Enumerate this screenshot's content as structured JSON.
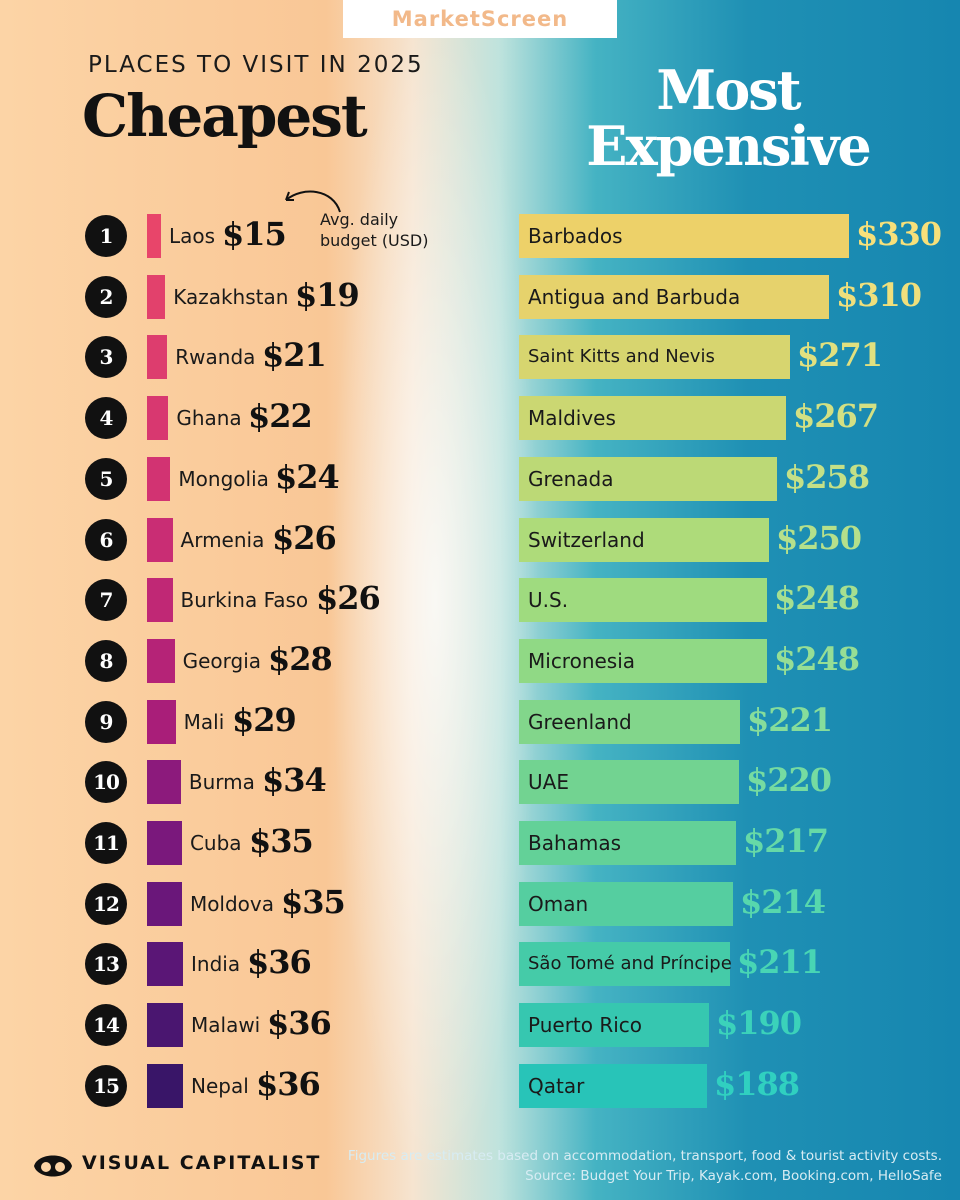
{
  "brand": "MarketScreen",
  "subtitle": "PLACES TO VISIT IN 2025",
  "footer": {
    "logo_text": "VISUAL CAPITALIST",
    "note": "Figures are estimates based on accommodation, transport, food & tourist activity costs.",
    "source": "Source: Budget Your Trip, Kayak.com, Booking.com, HelloSafe"
  },
  "chart_data": [
    {
      "type": "bar",
      "title": "Cheapest",
      "annotation": "Avg. daily budget (USD)",
      "categories": [
        "Laos",
        "Kazakhstan",
        "Rwanda",
        "Ghana",
        "Mongolia",
        "Armenia",
        "Burkina Faso",
        "Georgia",
        "Mali",
        "Burma",
        "Cuba",
        "Moldova",
        "India",
        "Malawi",
        "Nepal"
      ],
      "ranks": [
        "1",
        "2",
        "3",
        "4",
        "5",
        "6",
        "7",
        "8",
        "9",
        "10",
        "11",
        "12",
        "13",
        "14",
        "15"
      ],
      "values": [
        15,
        19,
        21,
        22,
        24,
        26,
        26,
        28,
        29,
        34,
        35,
        35,
        36,
        36,
        36
      ],
      "value_labels": [
        "$15",
        "$19",
        "$21",
        "$22",
        "$24",
        "$26",
        "$26",
        "$28",
        "$29",
        "$34",
        "$35",
        "$35",
        "$36",
        "$36",
        "$36"
      ],
      "colors": [
        "#e8456a",
        "#e2416c",
        "#dd3d6e",
        "#d83870",
        "#d23372",
        "#c92d74",
        "#c02875",
        "#b52377",
        "#a91e79",
        "#8c1a7c",
        "#7a187c",
        "#6a177a",
        "#5a1676",
        "#4a1670",
        "#391568"
      ]
    },
    {
      "type": "bar",
      "title": "Most Expensive",
      "categories": [
        "Barbados",
        "Antigua and Barbuda",
        "Saint Kitts and Nevis",
        "Maldives",
        "Grenada",
        "Switzerland",
        "U.S.",
        "Micronesia",
        "Greenland",
        "UAE",
        "Bahamas",
        "Oman",
        "São Tomé and Príncipe",
        "Puerto Rico",
        "Qatar"
      ],
      "values": [
        330,
        310,
        271,
        267,
        258,
        250,
        248,
        248,
        221,
        220,
        217,
        214,
        211,
        190,
        188
      ],
      "value_labels": [
        "$330",
        "$310",
        "$271",
        "$267",
        "$258",
        "$250",
        "$248",
        "$248",
        "$221",
        "$220",
        "$217",
        "$214",
        "$211",
        "$190",
        "$188"
      ],
      "colors": [
        "#edd169",
        "#e6d26c",
        "#d7d56f",
        "#cbd772",
        "#bcd976",
        "#aedb7a",
        "#9fdb7f",
        "#90d985",
        "#82d68b",
        "#72d391",
        "#63d198",
        "#55cea0",
        "#45cba8",
        "#36c7b0",
        "#28c4b8"
      ],
      "value_color": [
        "#f7e07a",
        "#efdf7c",
        "#e1e07f",
        "#d3e083",
        "#c4e087",
        "#b5e08b",
        "#a6df90",
        "#96de95",
        "#86dd9b",
        "#76dba1",
        "#66d9a7",
        "#57d7ad",
        "#48d5b4",
        "#3bd2ba",
        "#30d0c0"
      ]
    }
  ]
}
